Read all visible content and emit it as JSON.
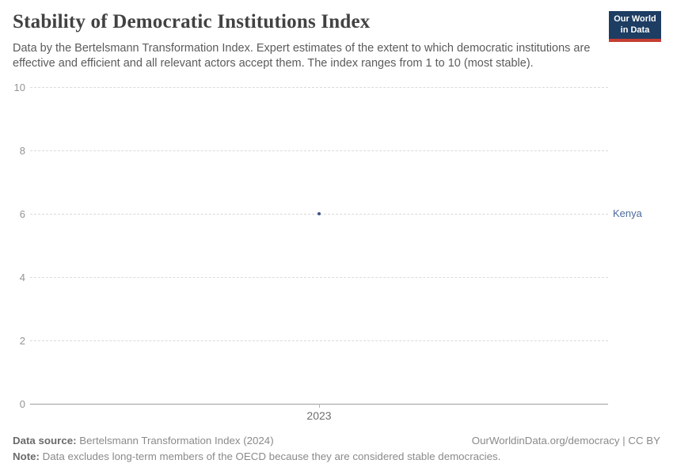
{
  "header": {
    "title": "Stability of Democratic Institutions Index",
    "subtitle": "Data by the Bertelsmann Transformation Index. Expert estimates of the extent to which democratic institutions are effective and efficient and all relevant actors accept them. The index ranges from 1 to 10 (most stable).",
    "logo": {
      "line1": "Our World",
      "line2": "in Data",
      "bg_color": "#1d3d63",
      "bar_color": "#c53e32"
    }
  },
  "chart_data": {
    "type": "scatter",
    "title": "Stability of Democratic Institutions Index",
    "series": [
      {
        "name": "Kenya",
        "x": [
          2023
        ],
        "y": [
          6
        ]
      }
    ],
    "x_ticks": [
      "2023"
    ],
    "y_ticks": [
      0,
      2,
      4,
      6,
      8,
      10
    ],
    "ylim": [
      0,
      10
    ],
    "xlabel": "",
    "ylabel": "",
    "grid": "horizontal-dashed",
    "legend_position": "right-of-point",
    "point_color": "#3d5589",
    "series_label_color": "#4c6a9c"
  },
  "footer": {
    "source_label": "Data source:",
    "source_text": " Bertelsmann Transformation Index (2024)",
    "rights": "OurWorldinData.org/democracy | CC BY",
    "note_label": "Note:",
    "note_text": " Data excludes long-term members of the OECD because they are considered stable democracies."
  }
}
